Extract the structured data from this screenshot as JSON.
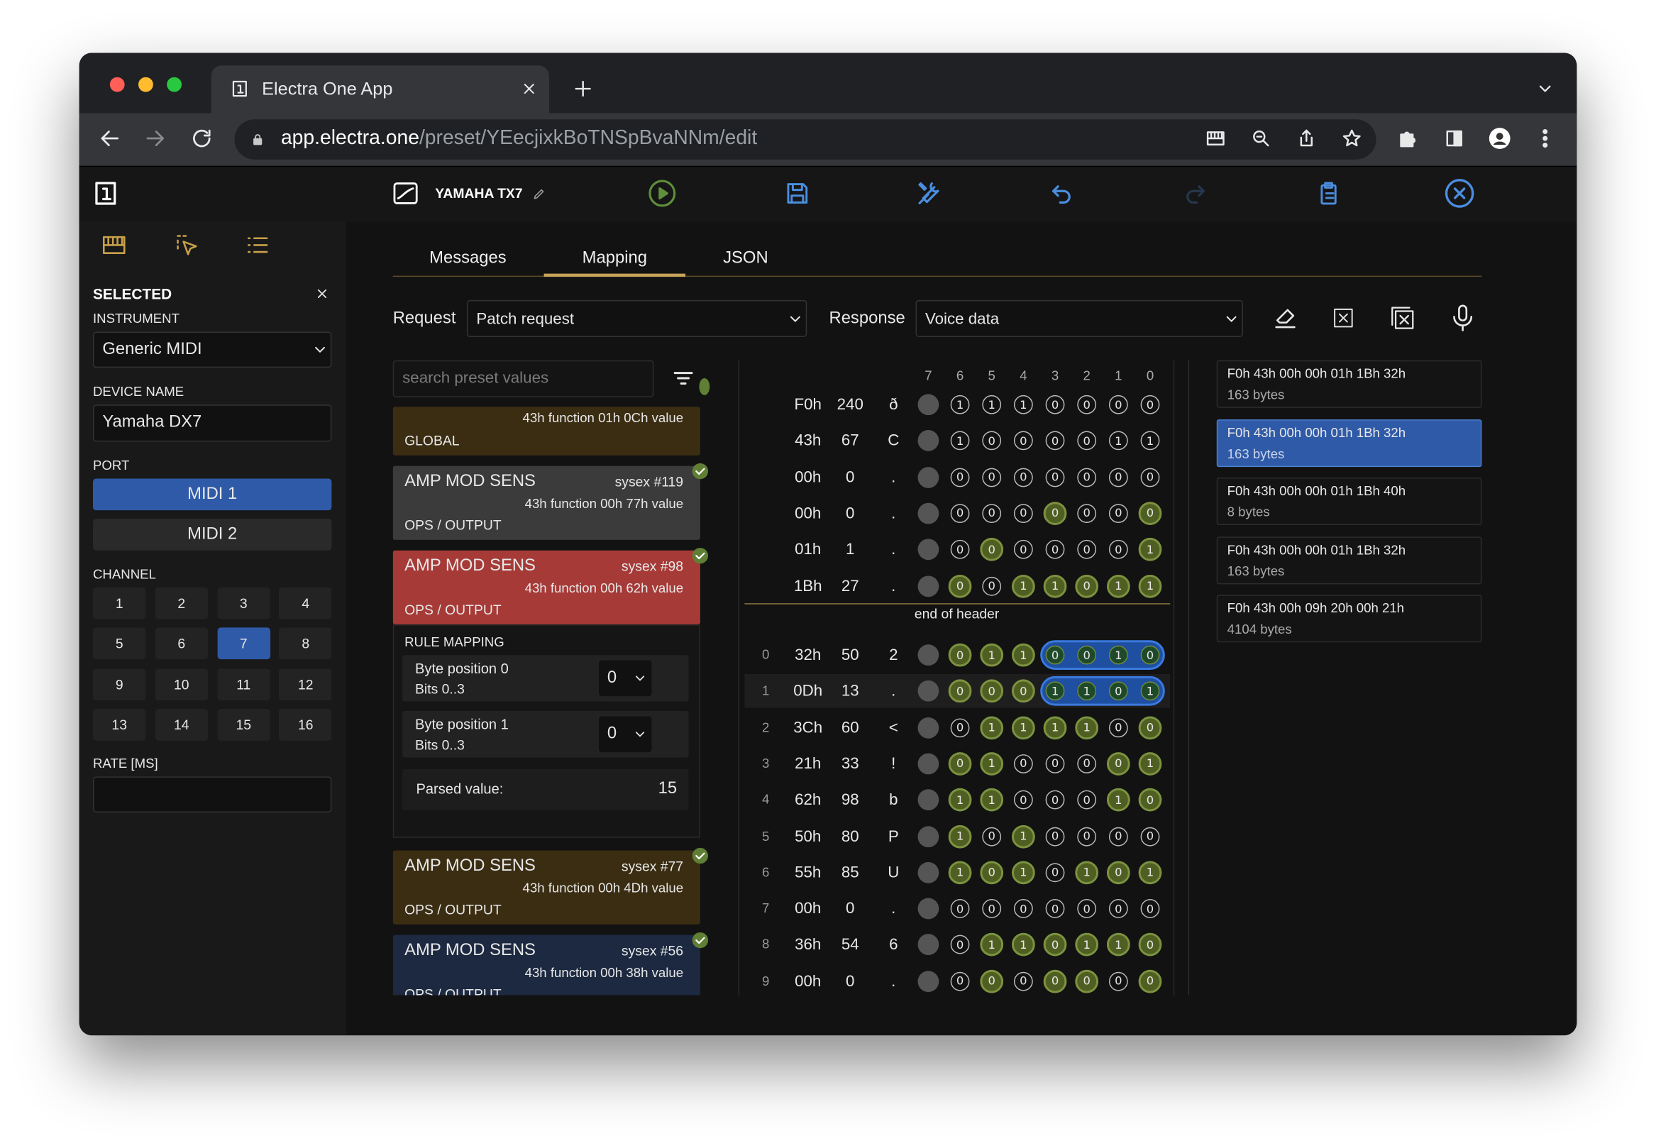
{
  "browser": {
    "tab_title": "Electra One App",
    "url_host": "app.electra.one",
    "url_path": "/preset/YEecjixkBoTNSpBvaNNm/edit"
  },
  "header": {
    "preset_name": "YAMAHA TX7"
  },
  "sidebar": {
    "title": "SELECTED",
    "instrument_label": "INSTRUMENT",
    "instrument": "Generic MIDI",
    "device_name_label": "DEVICE NAME",
    "device_name": "Yamaha DX7",
    "port_label": "PORT",
    "ports": [
      "MIDI 1",
      "MIDI 2"
    ],
    "selected_port_index": 0,
    "channel_label": "CHANNEL",
    "channels": [
      1,
      2,
      3,
      4,
      5,
      6,
      7,
      8,
      9,
      10,
      11,
      12,
      13,
      14,
      15,
      16
    ],
    "selected_channel_index": 6,
    "rate_label": "RATE [MS]"
  },
  "tabs": {
    "items": [
      "Messages",
      "Mapping",
      "JSON"
    ],
    "active_index": 1
  },
  "request": {
    "request_label": "Request",
    "request": "Patch request",
    "response_label": "Response",
    "response": "Voice data"
  },
  "search": {
    "placeholder": "search preset values"
  },
  "cards": [
    {
      "detail": "43h function 01h 0Ch value",
      "group": "GLOBAL",
      "color": "#3a2d12",
      "checked": false
    },
    {
      "name": "AMP MOD SENS",
      "sysex": "sysex #119",
      "detail": "43h function 00h 77h value",
      "group": "OPS / OUTPUT",
      "color": "#3b3b3b",
      "checked": true
    },
    {
      "name": "AMP MOD SENS",
      "sysex": "sysex #98",
      "detail": "43h function 00h 62h value",
      "group": "OPS / OUTPUT",
      "color": "#a63a37",
      "checked": true
    },
    {
      "name": "AMP MOD SENS",
      "sysex": "sysex #77",
      "detail": "43h function 00h 4Dh value",
      "group": "OPS / OUTPUT",
      "color": "#3a2d12",
      "checked": true
    },
    {
      "name": "AMP MOD SENS",
      "sysex": "sysex #56",
      "detail": "43h function 00h 38h value",
      "group": "OPS / OUTPUT",
      "color": "#1c2940",
      "checked": true
    }
  ],
  "rule_mapping": {
    "title": "RULE MAPPING",
    "rows": [
      {
        "label": "Byte position 0",
        "bits": "Bits 0..3",
        "value": 0
      },
      {
        "label": "Byte position 1",
        "bits": "Bits 0..3",
        "value": 0
      }
    ],
    "parsed_label": "Parsed value:",
    "parsed_value": 15
  },
  "byte_grid": {
    "columns": [
      7,
      6,
      5,
      4,
      3,
      2,
      1,
      0
    ],
    "header_rows": [
      {
        "hex": "F0h",
        "dec": 240,
        "char": "ð",
        "bits": [
          1,
          1,
          1,
          0,
          0,
          0,
          0
        ],
        "lit": [
          "n",
          "n",
          "n",
          "n",
          "n",
          "n",
          "n"
        ]
      },
      {
        "hex": "43h",
        "dec": 67,
        "char": "C",
        "bits": [
          1,
          0,
          0,
          0,
          0,
          1,
          1
        ],
        "lit": [
          "n",
          "n",
          "n",
          "n",
          "n",
          "n",
          "n"
        ]
      },
      {
        "hex": "00h",
        "dec": 0,
        "char": ".",
        "bits": [
          0,
          0,
          0,
          0,
          0,
          0,
          0
        ],
        "lit": [
          "n",
          "n",
          "n",
          "n",
          "n",
          "n",
          "n"
        ]
      },
      {
        "hex": "00h",
        "dec": 0,
        "char": ".",
        "bits": [
          0,
          0,
          0,
          0,
          0,
          0,
          0
        ],
        "lit": [
          "n",
          "n",
          "n",
          "g",
          "n",
          "n",
          "g"
        ]
      },
      {
        "hex": "01h",
        "dec": 1,
        "char": ".",
        "bits": [
          0,
          0,
          0,
          0,
          0,
          0,
          1
        ],
        "lit": [
          "n",
          "g",
          "n",
          "n",
          "n",
          "n",
          "g"
        ]
      },
      {
        "hex": "1Bh",
        "dec": 27,
        "char": ".",
        "bits": [
          0,
          0,
          1,
          1,
          0,
          1,
          1
        ],
        "lit": [
          "g",
          "n",
          "g",
          "g",
          "g",
          "g",
          "g"
        ]
      }
    ],
    "header_end": "end of header",
    "data_rows": [
      {
        "index": 0,
        "hex": "32h",
        "dec": 50,
        "char": "2",
        "bits": [
          0,
          1,
          1,
          0,
          0,
          1,
          0
        ],
        "lit": [
          "g",
          "g",
          "g",
          "b",
          "b",
          "b",
          "b"
        ]
      },
      {
        "index": 1,
        "hex": "0Dh",
        "dec": 13,
        "char": ".",
        "bits": [
          0,
          0,
          0,
          1,
          1,
          0,
          1
        ],
        "lit": [
          "g",
          "g",
          "g",
          "b",
          "b",
          "b",
          "b"
        ]
      },
      {
        "index": 2,
        "hex": "3Ch",
        "dec": 60,
        "char": "<",
        "bits": [
          0,
          1,
          1,
          1,
          1,
          0,
          0
        ],
        "lit": [
          "n",
          "g",
          "g",
          "g",
          "g",
          "n",
          "g"
        ]
      },
      {
        "index": 3,
        "hex": "21h",
        "dec": 33,
        "char": "!",
        "bits": [
          0,
          1,
          0,
          0,
          0,
          0,
          1
        ],
        "lit": [
          "g",
          "g",
          "n",
          "n",
          "n",
          "g",
          "g"
        ]
      },
      {
        "index": 4,
        "hex": "62h",
        "dec": 98,
        "char": "b",
        "bits": [
          1,
          1,
          0,
          0,
          0,
          1,
          0
        ],
        "lit": [
          "g",
          "g",
          "n",
          "n",
          "n",
          "g",
          "g"
        ]
      },
      {
        "index": 5,
        "hex": "50h",
        "dec": 80,
        "char": "P",
        "bits": [
          1,
          0,
          1,
          0,
          0,
          0,
          0
        ],
        "lit": [
          "g",
          "n",
          "g",
          "n",
          "n",
          "n",
          "n"
        ]
      },
      {
        "index": 6,
        "hex": "55h",
        "dec": 85,
        "char": "U",
        "bits": [
          1,
          0,
          1,
          0,
          1,
          0,
          1
        ],
        "lit": [
          "g",
          "g",
          "g",
          "n",
          "g",
          "g",
          "g"
        ]
      },
      {
        "index": 7,
        "hex": "00h",
        "dec": 0,
        "char": ".",
        "bits": [
          0,
          0,
          0,
          0,
          0,
          0,
          0
        ],
        "lit": [
          "n",
          "n",
          "n",
          "n",
          "n",
          "n",
          "n"
        ]
      },
      {
        "index": 8,
        "hex": "36h",
        "dec": 54,
        "char": "6",
        "bits": [
          0,
          1,
          1,
          0,
          1,
          1,
          0
        ],
        "lit": [
          "n",
          "g",
          "g",
          "g",
          "g",
          "g",
          "g"
        ]
      },
      {
        "index": 9,
        "hex": "00h",
        "dec": 0,
        "char": ".",
        "bits": [
          0,
          0,
          0,
          0,
          0,
          0,
          0
        ],
        "lit": [
          "n",
          "g",
          "n",
          "g",
          "g",
          "n",
          "g"
        ]
      }
    ],
    "highlighted_row_index": 1
  },
  "responses": {
    "items": [
      {
        "bytes": "F0h 43h 00h 00h 01h 1Bh 32h",
        "size": "163 bytes"
      },
      {
        "bytes": "F0h 43h 00h 00h 01h 1Bh 32h",
        "size": "163 bytes"
      },
      {
        "bytes": "F0h 43h 00h 00h 01h 1Bh 40h",
        "size": "8 bytes"
      },
      {
        "bytes": "F0h 43h 00h 00h 01h 1Bh 32h",
        "size": "163 bytes"
      },
      {
        "bytes": "F0h 43h 00h 09h 20h 00h 21h",
        "size": "4104 bytes"
      }
    ],
    "selected_index": 1
  }
}
